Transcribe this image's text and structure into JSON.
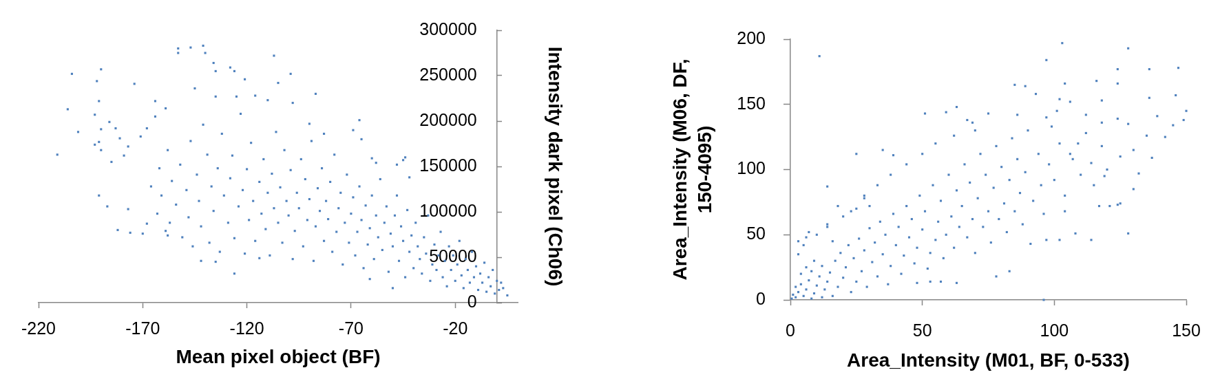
{
  "chart_data": [
    {
      "type": "scatter",
      "xlabel": "Mean pixel object (BF)",
      "ylabel": "Intensity dark pixel (Ch06)",
      "xlim": [
        -220,
        10
      ],
      "xticks": [
        -220,
        -170,
        -120,
        -70,
        -20
      ],
      "ylim": [
        0,
        300000
      ],
      "yticks": [
        0,
        50000,
        100000,
        150000,
        200000,
        250000,
        300000
      ],
      "marker": "square",
      "color": "#4f81bd",
      "x": [
        -211,
        -206,
        -204,
        -201,
        -193,
        -192,
        -191,
        -190,
        -190,
        -193,
        -191,
        -190,
        -191,
        -187,
        -186,
        -183,
        -181,
        -177,
        -174,
        -185,
        -179,
        -182,
        -177,
        -176,
        -170,
        -168,
        -168,
        -171,
        -164,
        -164,
        -159,
        -158,
        -159,
        -153,
        -153,
        -147,
        -141,
        -140,
        -136,
        -135,
        -128,
        -126,
        -121,
        -107,
        -99,
        -105,
        -87,
        -66,
        -69,
        -65,
        -145,
        -135,
        -125,
        -116,
        -110,
        -98,
        -83,
        -90,
        -60,
        -58,
        -45,
        -44,
        -42,
        -48,
        -142,
        -135,
        -126,
        -114,
        -61,
        -50,
        5,
        2,
        -166,
        -163,
        -162,
        -161,
        -158,
        -157,
        -156,
        -154,
        -152,
        -151,
        -149,
        -148,
        -147,
        -146,
        -144,
        -143,
        -142,
        -141,
        -139,
        -138,
        -137,
        -136,
        -134,
        -133,
        -132,
        -131,
        -129,
        -128,
        -127,
        -126,
        -124,
        -123,
        -122,
        -121,
        -120,
        -119,
        -118,
        -117,
        -116,
        -114,
        -113,
        -112,
        -111,
        -110,
        -109,
        -108,
        -107,
        -106,
        -105,
        -104,
        -103,
        -102,
        -101,
        -100,
        -99,
        -98,
        -97,
        -96,
        -95,
        -94,
        -93,
        -92,
        -91,
        -90,
        -89,
        -88,
        -87,
        -86,
        -85,
        -84,
        -83,
        -82,
        -81,
        -80,
        -79,
        -78,
        -77,
        -76,
        -75,
        -74,
        -73,
        -72,
        -71,
        -70,
        -69,
        -68,
        -67,
        -66,
        -65,
        -64,
        -63,
        -62,
        -61,
        -60,
        -59,
        -58,
        -57,
        -56,
        -55,
        -54,
        -53,
        -52,
        -51,
        -50,
        -49,
        -48,
        -47,
        -46,
        -45,
        -44,
        -43,
        -42,
        -41,
        -40,
        -39,
        -38,
        -37,
        -36,
        -35,
        -34,
        -33,
        -32,
        -31,
        -30,
        -29,
        -28,
        -27,
        -26,
        -25,
        -24,
        -23,
        -22,
        -21,
        -20,
        -19,
        -18,
        -17,
        -16,
        -15,
        -14,
        -13,
        -12,
        -11,
        -10,
        -9,
        -8,
        -7,
        -6,
        -5,
        -4,
        -3,
        -2,
        -1,
        0,
        1,
        3
      ],
      "values": [
        163000,
        213000,
        252000,
        188000,
        207000,
        244000,
        222000,
        257000,
        191000,
        174000,
        177000,
        168000,
        118000,
        106000,
        199000,
        192000,
        181000,
        172000,
        241000,
        155000,
        162000,
        80000,
        103000,
        77000,
        76000,
        87000,
        192000,
        183000,
        222000,
        205000,
        214000,
        74000,
        79000,
        280000,
        275000,
        281000,
        283000,
        275000,
        264000,
        255000,
        259000,
        255000,
        246000,
        272000,
        252000,
        242000,
        230000,
        201000,
        190000,
        180000,
        236000,
        227000,
        227000,
        228000,
        223000,
        220000,
        186000,
        197000,
        159000,
        154000,
        157000,
        160000,
        138000,
        152000,
        46000,
        45000,
        32000,
        49000,
        26000,
        16000,
        8000,
        22000,
        128000,
        98000,
        148000,
        118000,
        168000,
        88000,
        134000,
        108000,
        152000,
        72000,
        124000,
        94000,
        178000,
        62000,
        141000,
        112000,
        84000,
        196000,
        163000,
        66000,
        128000,
        101000,
        148000,
        56000,
        186000,
        118000,
        88000,
        137000,
        162000,
        71000,
        106000,
        208000,
        124000,
        54000,
        147000,
        91000,
        176000,
        112000,
        68000,
        133000,
        98000,
        158000,
        81000,
        121000,
        52000,
        142000,
        104000,
        188000,
        88000,
        127000,
        66000,
        168000,
        112000,
        96000,
        146000,
        48000,
        79000,
        121000,
        104000,
        158000,
        62000,
        136000,
        91000,
        114000,
        178000,
        46000,
        84000,
        126000,
        101000,
        148000,
        68000,
        112000,
        92000,
        133000,
        56000,
        163000,
        78000,
        104000,
        121000,
        42000,
        88000,
        141000,
        66000,
        98000,
        116000,
        52000,
        78000,
        128000,
        91000,
        38000,
        107000,
        64000,
        82000,
        118000,
        48000,
        96000,
        72000,
        136000,
        58000,
        88000,
        106000,
        34000,
        76000,
        62000,
        96000,
        118000,
        46000,
        84000,
        68000,
        28000,
        102000,
        56000,
        74000,
        38000,
        88000,
        62000,
        48000,
        32000,
        72000,
        54000,
        96000,
        24000,
        42000,
        64000,
        36000,
        52000,
        78000,
        28000,
        46000,
        18000,
        62000,
        36000,
        52000,
        24000,
        42000,
        68000,
        30000,
        16000,
        48000,
        36000,
        22000,
        56000,
        28000,
        40000,
        14000,
        32000,
        22000,
        44000,
        12000,
        28000,
        18000,
        36000,
        10000,
        24000,
        14000,
        16000
      ]
    },
    {
      "type": "scatter",
      "xlabel": "Area_Intensity (M01, BF, 0-533)",
      "ylabel": "Area_Intensity (M06, DF, 150-4095)",
      "xlim": [
        0,
        150
      ],
      "xticks": [
        0,
        50,
        100,
        150
      ],
      "ylim": [
        0,
        200
      ],
      "yticks": [
        0,
        50,
        100,
        150,
        200
      ],
      "marker": "square",
      "color": "#4f81bd",
      "x": [
        11,
        103,
        128,
        97,
        85,
        89,
        93,
        102,
        104,
        116,
        124,
        124,
        136,
        147,
        136,
        146,
        150,
        149,
        145,
        139,
        142,
        135,
        137,
        130,
        132,
        124,
        119,
        130,
        128,
        124,
        118,
        112,
        118,
        106,
        101,
        97,
        75,
        63,
        59,
        51,
        67,
        69,
        86,
        25,
        14,
        35,
        39,
        114,
        109,
        107,
        99,
        128,
        114,
        108,
        117,
        121,
        125,
        104,
        102,
        97,
        91,
        83,
        78,
        63,
        57,
        53,
        48,
        96,
        18,
        7,
        3,
        14,
        23,
        28,
        0.5,
        1,
        2,
        3,
        2,
        4,
        5,
        6,
        7,
        8,
        9,
        10,
        11,
        12,
        4,
        6,
        8,
        9,
        12,
        13,
        14,
        15,
        16,
        17,
        18,
        19,
        20,
        21,
        22,
        23,
        24,
        25,
        26,
        27,
        28,
        29,
        30,
        31,
        32,
        33,
        34,
        35,
        36,
        37,
        38,
        39,
        40,
        41,
        42,
        43,
        44,
        45,
        46,
        47,
        48,
        49,
        50,
        51,
        52,
        53,
        54,
        55,
        56,
        57,
        58,
        59,
        60,
        61,
        62,
        63,
        64,
        65,
        66,
        67,
        68,
        69,
        70,
        71,
        72,
        73,
        74,
        75,
        76,
        77,
        78,
        79,
        80,
        81,
        82,
        83,
        84,
        85,
        86,
        87,
        88,
        89,
        90,
        92,
        94,
        95,
        96,
        98,
        100,
        102,
        104,
        106,
        110,
        112,
        115,
        118,
        120,
        125,
        3,
        5,
        10,
        14,
        20,
        25,
        28,
        33,
        38,
        44,
        50,
        55,
        62,
        70,
        6,
        16,
        30
      ],
      "values": [
        187,
        197,
        193,
        184,
        165,
        164,
        158,
        154,
        166,
        168,
        177,
        166,
        177,
        178,
        155,
        157,
        145,
        138,
        134,
        141,
        125,
        126,
        109,
        85,
        97,
        73,
        95,
        115,
        135,
        139,
        136,
        142,
        153,
        152,
        145,
        140,
        143,
        148,
        144,
        143,
        138,
        136,
        142,
        112,
        87,
        115,
        111,
        105,
        120,
        108,
        133,
        51,
        46,
        51,
        72,
        72,
        74,
        68,
        46,
        46,
        43,
        22,
        18,
        13,
        14,
        14,
        13,
        0,
        72,
        52,
        45,
        56,
        68,
        78,
        1,
        4,
        2,
        6,
        10,
        12,
        3,
        8,
        15,
        1,
        5,
        11,
        18,
        2,
        20,
        25,
        22,
        30,
        26,
        8,
        14,
        21,
        3,
        30,
        10,
        36,
        17,
        25,
        42,
        6,
        32,
        14,
        47,
        22,
        38,
        10,
        55,
        29,
        44,
        18,
        60,
        35,
        50,
        12,
        26,
        66,
        42,
        56,
        20,
        34,
        72,
        48,
        62,
        28,
        40,
        80,
        54,
        68,
        24,
        36,
        88,
        46,
        60,
        76,
        32,
        50,
        96,
        64,
        40,
        84,
        56,
        72,
        104,
        48,
        90,
        62,
        36,
        78,
        112,
        56,
        96,
        68,
        44,
        86,
        118,
        62,
        102,
        74,
        52,
        92,
        124,
        68,
        108,
        82,
        58,
        98,
        130,
        76,
        112,
        88,
        66,
        104,
        92,
        120,
        80,
        112,
        96,
        128,
        88,
        118,
        100,
        110,
        35,
        42,
        50,
        58,
        64,
        70,
        80,
        88,
        96,
        104,
        112,
        120,
        126,
        130,
        48,
        45,
        72
      ]
    }
  ]
}
